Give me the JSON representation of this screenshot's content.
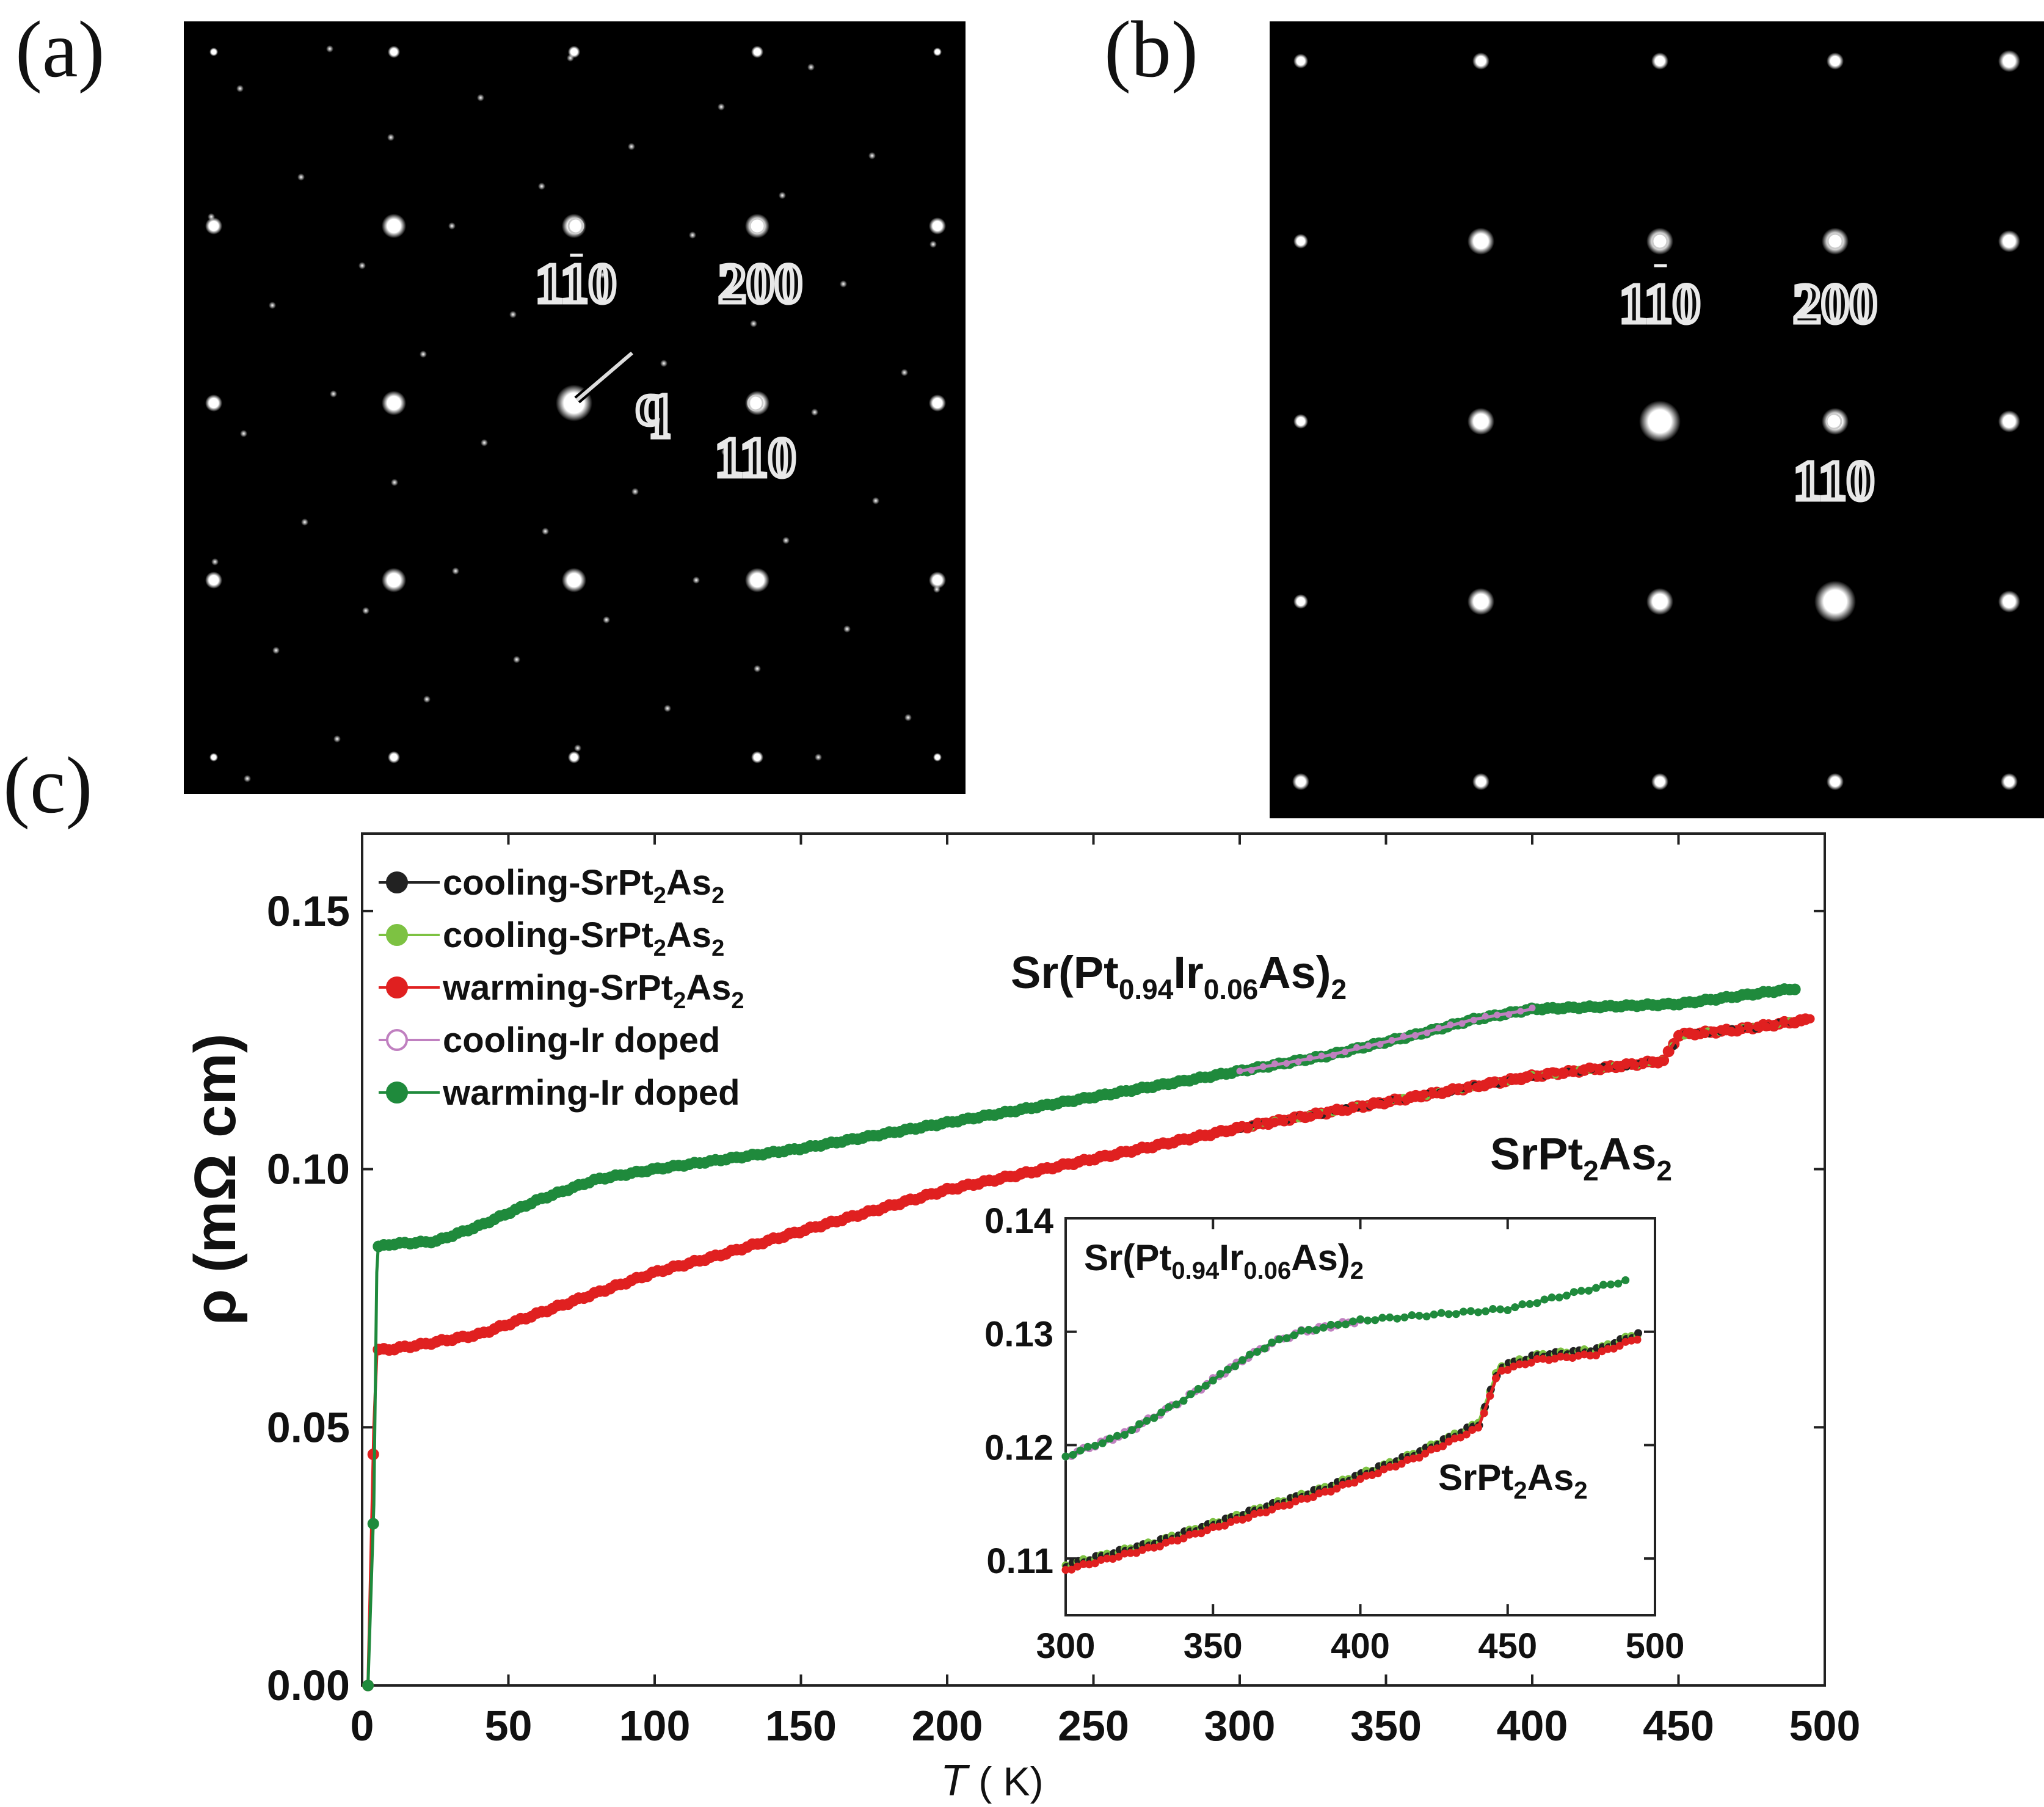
{
  "panels": {
    "a": {
      "label": "(a)",
      "spots": [
        "110",
        "200",
        "110"
      ],
      "wavevector_label": "q"
    },
    "b": {
      "label": "(b)",
      "spots": [
        "110",
        "200",
        "110"
      ]
    },
    "c": {
      "label": "(c)"
    }
  },
  "chart_data": [
    {
      "type": "scatter",
      "name": "main",
      "xlabel": "T (K)",
      "ylabel": "ρ (mΩ cm)",
      "xlim": [
        0,
        500
      ],
      "ylim": [
        0,
        0.165
      ],
      "xticks": [
        0,
        50,
        100,
        150,
        200,
        250,
        300,
        350,
        400,
        450,
        500
      ],
      "yticks": [
        0.0,
        0.05,
        0.1,
        0.15
      ],
      "legend": {
        "position": "top-left",
        "entries": [
          {
            "text": "cooling-SrPt",
            "sub1": "2",
            "text2": "As",
            "sub2": "2",
            "color": "#222222",
            "marker": "filled"
          },
          {
            "text": "cooling-SrPt",
            "sub1": "2",
            "text2": "As",
            "sub2": "2",
            "color": "#7dc242",
            "marker": "filled"
          },
          {
            "text": "warming-SrPt",
            "sub1": "2",
            "text2": "As",
            "sub2": "2",
            "color": "#e02020",
            "marker": "filled"
          },
          {
            "text": "cooling-Ir doped",
            "sub1": "",
            "text2": "",
            "sub2": "",
            "color": "#c080c0",
            "marker": "open"
          },
          {
            "text": "warming-Ir doped",
            "sub1": "",
            "text2": "",
            "sub2": "",
            "color": "#1f8a3c",
            "marker": "filled"
          }
        ]
      },
      "annotations": {
        "doped": {
          "a": "Sr(Pt",
          "b": "0.94",
          "c": "Ir",
          "d": "0.06",
          "e": "As)",
          "f": "2"
        },
        "parent": {
          "a": "SrPt",
          "b": "2",
          "c": "As",
          "d": "2"
        }
      },
      "series": [
        {
          "name": "SrPt2As2",
          "color": "#e02020",
          "x": [
            2,
            4,
            5,
            5.5,
            6,
            8,
            20,
            40,
            60,
            80,
            100,
            120,
            150,
            200,
            250,
            300,
            350,
            400,
            430,
            445,
            450,
            470,
            495
          ],
          "y": [
            0.0,
            0.05,
            0.064,
            0.065,
            0.065,
            0.065,
            0.066,
            0.068,
            0.072,
            0.076,
            0.08,
            0.083,
            0.088,
            0.096,
            0.102,
            0.108,
            0.113,
            0.118,
            0.12,
            0.121,
            0.126,
            0.127,
            0.129
          ]
        },
        {
          "name": "Sr(Pt0.94Ir0.06As)2",
          "color": "#1f8a3c",
          "x": [
            2,
            4,
            5,
            5.5,
            6,
            10,
            25,
            40,
            60,
            80,
            100,
            150,
            200,
            250,
            300,
            330,
            360,
            380,
            400,
            450,
            490
          ],
          "y": [
            0.0,
            0.035,
            0.08,
            0.085,
            0.085,
            0.0855,
            0.086,
            0.089,
            0.094,
            0.098,
            0.1,
            0.104,
            0.109,
            0.114,
            0.119,
            0.122,
            0.126,
            0.129,
            0.131,
            0.132,
            0.135
          ]
        }
      ]
    },
    {
      "type": "scatter",
      "name": "inset",
      "xlim": [
        300,
        500
      ],
      "ylim": [
        0.105,
        0.14
      ],
      "xticks": [
        300,
        350,
        400,
        450,
        500
      ],
      "yticks": [
        0.11,
        0.12,
        0.13,
        0.14
      ],
      "series": [
        {
          "name": "Sr(Pt0.94Ir0.06As)2",
          "color": "#1f8a3c",
          "x": [
            300,
            320,
            340,
            360,
            370,
            380,
            400,
            450,
            490
          ],
          "y": [
            0.119,
            0.121,
            0.124,
            0.1275,
            0.129,
            0.13,
            0.131,
            0.132,
            0.1345
          ]
        },
        {
          "name": "SrPt2As2",
          "color": "#e02020",
          "x": [
            300,
            330,
            360,
            390,
            420,
            440,
            447,
            460,
            480,
            495
          ],
          "y": [
            0.109,
            0.111,
            0.1135,
            0.116,
            0.119,
            0.1215,
            0.1265,
            0.1275,
            0.128,
            0.1295
          ]
        }
      ],
      "annotations": {
        "doped": {
          "a": "Sr(Pt",
          "b": "0.94",
          "c": "Ir",
          "d": "0.06",
          "e": "As)",
          "f": "2"
        },
        "parent": {
          "a": "SrPt",
          "b": "2",
          "c": "As",
          "d": "2"
        }
      }
    }
  ]
}
